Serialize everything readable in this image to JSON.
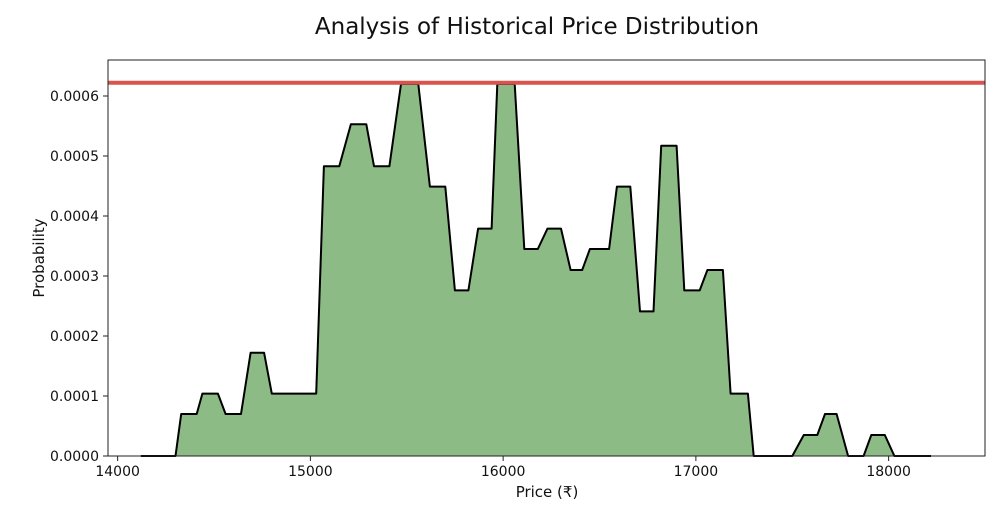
{
  "chart_data": {
    "type": "area",
    "title": "Analysis of Historical Price Distribution",
    "xlabel": "Price (₹)",
    "ylabel": "Probability",
    "xlim": [
      13950,
      18500
    ],
    "ylim": [
      0,
      0.00066
    ],
    "xticks": [
      14000,
      15000,
      16000,
      17000,
      18000
    ],
    "xtick_labels": [
      "14000",
      "15000",
      "16000",
      "17000",
      "18000"
    ],
    "yticks": [
      0,
      0.0001,
      0.0002,
      0.0003,
      0.0004,
      0.0005,
      0.0006
    ],
    "ytick_labels": [
      "0.0000",
      "0.0001",
      "0.0002",
      "0.0003",
      "0.0004",
      "0.0005",
      "0.0006"
    ],
    "grid": false,
    "fill_color": "#8dbb85",
    "line_color": "#000000",
    "reference_line": {
      "y": 0.000622,
      "color": "#d9534f"
    },
    "series": [
      {
        "values": [
          [
            14120,
            0
          ],
          [
            14300,
            0
          ],
          [
            14330,
            7e-05
          ],
          [
            14410,
            7e-05
          ],
          [
            14440,
            0.000104
          ],
          [
            14520,
            0.000104
          ],
          [
            14560,
            7e-05
          ],
          [
            14640,
            7e-05
          ],
          [
            14690,
            0.000172
          ],
          [
            14760,
            0.000172
          ],
          [
            14800,
            0.000104
          ],
          [
            15030,
            0.000104
          ],
          [
            15070,
            0.000483
          ],
          [
            15150,
            0.000483
          ],
          [
            15210,
            0.000553
          ],
          [
            15290,
            0.000553
          ],
          [
            15330,
            0.000483
          ],
          [
            15410,
            0.000483
          ],
          [
            15470,
            0.00062
          ],
          [
            15560,
            0.00062
          ],
          [
            15620,
            0.000449
          ],
          [
            15700,
            0.000449
          ],
          [
            15750,
            0.000276
          ],
          [
            15820,
            0.000276
          ],
          [
            15870,
            0.000379
          ],
          [
            15940,
            0.000379
          ],
          [
            15970,
            0.00062
          ],
          [
            16060,
            0.00062
          ],
          [
            16110,
            0.000345
          ],
          [
            16180,
            0.000345
          ],
          [
            16230,
            0.000379
          ],
          [
            16300,
            0.000379
          ],
          [
            16350,
            0.00031
          ],
          [
            16410,
            0.00031
          ],
          [
            16450,
            0.000345
          ],
          [
            16550,
            0.000345
          ],
          [
            16590,
            0.000449
          ],
          [
            16660,
            0.000449
          ],
          [
            16710,
            0.000241
          ],
          [
            16780,
            0.000241
          ],
          [
            16820,
            0.000517
          ],
          [
            16900,
            0.000517
          ],
          [
            16940,
            0.000276
          ],
          [
            17020,
            0.000276
          ],
          [
            17060,
            0.00031
          ],
          [
            17140,
            0.00031
          ],
          [
            17180,
            0.000104
          ],
          [
            17270,
            0.000104
          ],
          [
            17300,
            0
          ],
          [
            17500,
            0
          ],
          [
            17560,
            3.5e-05
          ],
          [
            17630,
            3.5e-05
          ],
          [
            17670,
            7e-05
          ],
          [
            17730,
            7e-05
          ],
          [
            17790,
            0
          ],
          [
            17870,
            0
          ],
          [
            17910,
            3.5e-05
          ],
          [
            17980,
            3.5e-05
          ],
          [
            18030,
            0
          ],
          [
            18220,
            0
          ]
        ]
      }
    ]
  }
}
